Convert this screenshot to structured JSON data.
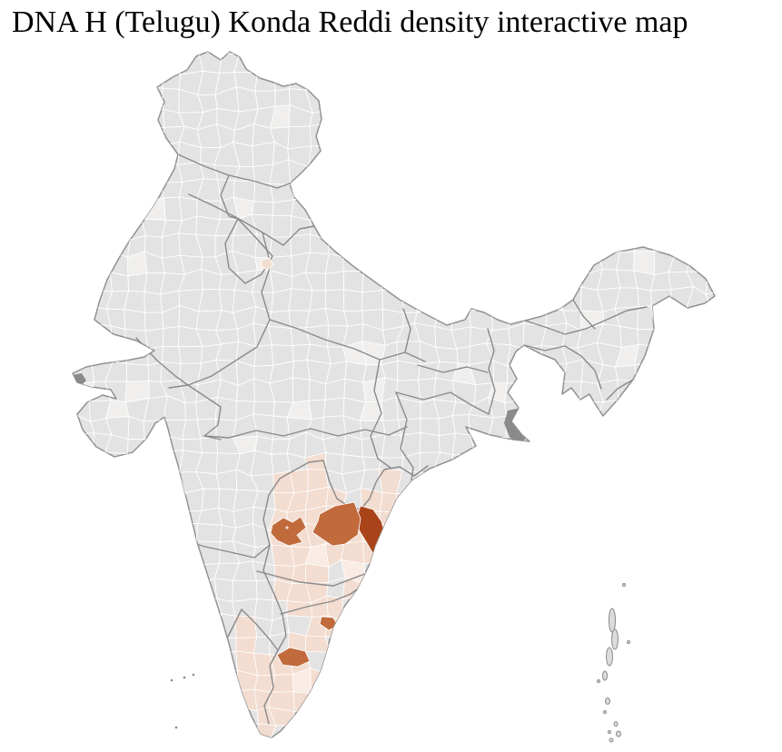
{
  "page": {
    "title": "DNA H (Telugu) Konda Reddi density interactive map"
  },
  "map": {
    "name": "india-district-choropleth",
    "description": "Choropleth map of India districts, density shading over south-eastern districts",
    "colors": {
      "sea": "#ffffff",
      "district_fill": "#e3e3e3",
      "district_fill_light": "#f0efee",
      "district_border": "#ffffff",
      "state_border": "#8a8a8a",
      "country_border": "#929292",
      "density_low": "#f3dcd0",
      "density_low_pale": "#f8ece4",
      "density_medium": "#c16a3c",
      "density_high": "#a9441a",
      "neutral_dark": "#8a8a8a",
      "island_fill": "#dcdcdc",
      "island_stroke": "#8a8a8a"
    },
    "density_regions": [
      {
        "id": "high-density-district",
        "level": "density_high"
      },
      {
        "id": "medium-density-district-1",
        "level": "density_medium"
      },
      {
        "id": "medium-density-district-2",
        "level": "density_medium"
      },
      {
        "id": "medium-density-district-3",
        "level": "density_medium"
      },
      {
        "id": "medium-density-district-4",
        "level": "density_medium"
      },
      {
        "id": "low-density-seed-district",
        "level": "density_low"
      },
      {
        "id": "neutral-dark-district-1",
        "level": "neutral_dark"
      },
      {
        "id": "neutral-dark-district-2",
        "level": "neutral_dark"
      }
    ],
    "legend": {
      "visible": false
    }
  }
}
